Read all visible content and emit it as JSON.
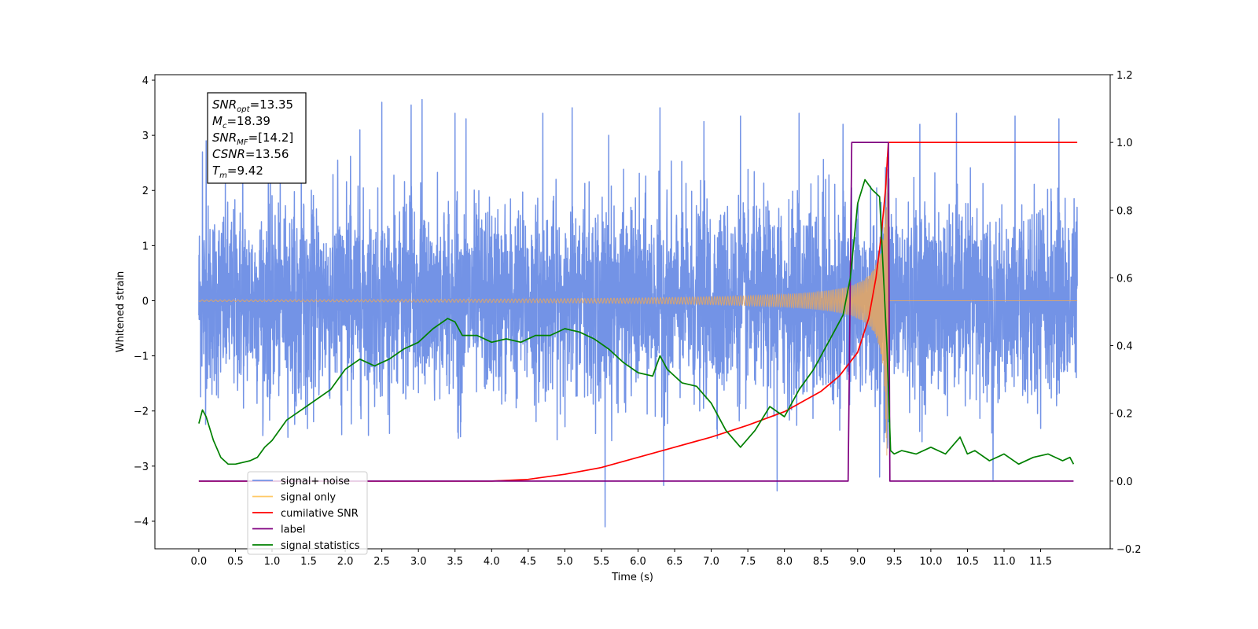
{
  "chart_data": {
    "type": "line",
    "xlabel": "Time (s)",
    "ylabel": "Whitened strain",
    "xlim": [
      -0.6,
      12.45
    ],
    "ylim": [
      -4.5,
      4.1
    ],
    "ylim_right": [
      -0.2,
      1.2
    ],
    "x_ticks": [
      "0.0",
      "0.5",
      "1.0",
      "1.5",
      "2.0",
      "2.5",
      "3.0",
      "3.5",
      "4.0",
      "4.5",
      "5.0",
      "5.5",
      "6.0",
      "6.5",
      "7.0",
      "7.5",
      "8.0",
      "8.5",
      "9.0",
      "9.5",
      "10.0",
      "10.5",
      "11.0",
      "11.5"
    ],
    "y_ticks_left": [
      "4",
      "3",
      "2",
      "1",
      "0",
      "−1",
      "−2",
      "−3",
      "−4"
    ],
    "y_ticks_right": [
      "1.2",
      "1.0",
      "0.8",
      "0.6",
      "0.4",
      "0.2",
      "0.0",
      "−0.2"
    ],
    "grid": false,
    "legend": {
      "placement": "lower-left",
      "entries": [
        {
          "label": "signal+ noise",
          "color": "#7393e6"
        },
        {
          "label": "signal only",
          "color": "#ffc966"
        },
        {
          "label": "cumilative SNR",
          "color": "#ff0000"
        },
        {
          "label": "label",
          "color": "#800080"
        },
        {
          "label": "signal statistics",
          "color": "#008000"
        }
      ]
    },
    "annotation": {
      "lines": [
        {
          "name": "SNR",
          "sub": "opt",
          "value": "=13.35"
        },
        {
          "name": "M",
          "sub": "c",
          "value": "=18.39"
        },
        {
          "name": "SNR",
          "sub": "MF",
          "value": "=[14.2]"
        },
        {
          "name": "CSNR",
          "sub": "",
          "value": "=13.56"
        },
        {
          "name": "T",
          "sub": "m",
          "value": "=9.42"
        }
      ]
    },
    "series": [
      {
        "name": "signal+ noise",
        "axis": "left",
        "color": "#7393e6",
        "x_range": [
          0.0,
          12.0
        ],
        "noise_std": 1.0,
        "envelope": [
          2.3,
          2.6
        ],
        "peaks": [
          [
            0.05,
            2.7
          ],
          [
            0.1,
            2.9
          ],
          [
            0.6,
            3.3
          ],
          [
            0.95,
            3.35
          ],
          [
            1.4,
            3.3
          ],
          [
            2.2,
            3.1
          ],
          [
            2.5,
            3.6
          ],
          [
            2.9,
            3.55
          ],
          [
            3.05,
            3.65
          ],
          [
            3.5,
            3.4
          ],
          [
            3.65,
            3.3
          ],
          [
            4.7,
            3.4
          ],
          [
            5.1,
            3.5
          ],
          [
            5.55,
            -4.1
          ],
          [
            5.6,
            3.0
          ],
          [
            6.3,
            3.5
          ],
          [
            6.35,
            -3.35
          ],
          [
            6.9,
            3.25
          ],
          [
            7.4,
            3.35
          ],
          [
            7.9,
            -3.45
          ],
          [
            8.2,
            3.4
          ],
          [
            8.8,
            3.2
          ],
          [
            9.3,
            -3.2
          ],
          [
            9.85,
            3.2
          ],
          [
            10.35,
            3.4
          ],
          [
            10.85,
            -3.25
          ],
          [
            11.15,
            3.35
          ],
          [
            11.75,
            3.3
          ]
        ]
      },
      {
        "name": "signal only",
        "axis": "left",
        "color": "#e8a75e",
        "chirp": {
          "t_merge": 9.42,
          "peak_amplitude": 2.9,
          "start_amplitude": 0.02
        }
      },
      {
        "name": "cumilative SNR",
        "axis": "right",
        "color": "#ff0000",
        "x": [
          0.0,
          4.0,
          4.5,
          5.0,
          5.5,
          6.0,
          6.5,
          7.0,
          7.5,
          8.0,
          8.5,
          8.75,
          9.0,
          9.15,
          9.25,
          9.32,
          9.38,
          9.42,
          12.0
        ],
        "values": [
          0.0,
          0.0,
          0.005,
          0.02,
          0.04,
          0.07,
          0.1,
          0.13,
          0.165,
          0.205,
          0.265,
          0.31,
          0.38,
          0.48,
          0.6,
          0.72,
          0.86,
          1.0,
          1.0
        ]
      },
      {
        "name": "label",
        "axis": "right",
        "color": "#800080",
        "x": [
          0.0,
          8.87,
          8.92,
          9.42,
          9.44,
          11.95
        ],
        "values": [
          0.0,
          0.0,
          1.0,
          1.0,
          0.0,
          0.0
        ]
      },
      {
        "name": "signal statistics",
        "axis": "right",
        "color": "#008000",
        "x": [
          0.0,
          0.05,
          0.1,
          0.2,
          0.3,
          0.4,
          0.5,
          0.6,
          0.7,
          0.8,
          0.9,
          1.0,
          1.2,
          1.4,
          1.6,
          1.8,
          2.0,
          2.2,
          2.4,
          2.6,
          2.8,
          3.0,
          3.2,
          3.4,
          3.5,
          3.6,
          3.8,
          4.0,
          4.2,
          4.4,
          4.6,
          4.8,
          5.0,
          5.2,
          5.4,
          5.6,
          5.8,
          6.0,
          6.2,
          6.3,
          6.4,
          6.6,
          6.8,
          7.0,
          7.2,
          7.4,
          7.6,
          7.8,
          8.0,
          8.2,
          8.4,
          8.6,
          8.8,
          8.9,
          9.0,
          9.1,
          9.2,
          9.3,
          9.4,
          9.45,
          9.5,
          9.6,
          9.8,
          10.0,
          10.2,
          10.4,
          10.5,
          10.6,
          10.8,
          11.0,
          11.2,
          11.4,
          11.6,
          11.8,
          11.9,
          11.95
        ],
        "values": [
          0.17,
          0.21,
          0.19,
          0.12,
          0.07,
          0.05,
          0.05,
          0.055,
          0.06,
          0.07,
          0.1,
          0.12,
          0.18,
          0.21,
          0.24,
          0.27,
          0.33,
          0.36,
          0.34,
          0.36,
          0.39,
          0.41,
          0.45,
          0.48,
          0.47,
          0.43,
          0.43,
          0.41,
          0.42,
          0.41,
          0.43,
          0.43,
          0.45,
          0.44,
          0.42,
          0.39,
          0.35,
          0.32,
          0.31,
          0.37,
          0.33,
          0.29,
          0.28,
          0.23,
          0.15,
          0.1,
          0.15,
          0.22,
          0.19,
          0.27,
          0.33,
          0.41,
          0.49,
          0.6,
          0.82,
          0.89,
          0.86,
          0.84,
          0.4,
          0.09,
          0.08,
          0.09,
          0.08,
          0.1,
          0.08,
          0.13,
          0.08,
          0.09,
          0.06,
          0.08,
          0.05,
          0.07,
          0.08,
          0.06,
          0.07,
          0.05
        ]
      }
    ]
  }
}
